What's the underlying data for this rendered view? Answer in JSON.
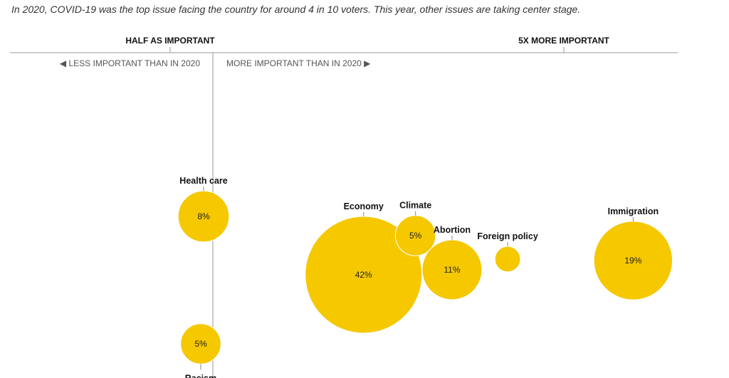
{
  "intro": "In 2020, COVID-19 was the top issue facing the country for around 4 in 10 voters. This year, other issues are taking center stage.",
  "scale": {
    "half_label": "HALF AS IMPORTANT",
    "five_x_label": "5X MORE IMPORTANT",
    "less_label": "◀ LESS IMPORTANT THAN IN 2020",
    "more_label": "MORE IMPORTANT THAN IN 2020 ▶"
  },
  "chart_data": {
    "type": "scatter",
    "title": "",
    "xlabel": "",
    "ylabel": "",
    "x_scale": "log",
    "x_tick_labels": [
      "HALF AS IMPORTANT",
      "5X MORE IMPORTANT"
    ],
    "points": [
      {
        "issue": "Health care",
        "value_label": "8%",
        "share": 8,
        "change_ratio": 0.9
      },
      {
        "issue": "Racism",
        "value_label": "5%",
        "share": 5,
        "change_ratio": 0.9
      },
      {
        "issue": "Economy",
        "value_label": "42%",
        "share": 42,
        "change_ratio": 1.55
      },
      {
        "issue": "Climate",
        "value_label": "5%",
        "share": 5,
        "change_ratio": 2.1
      },
      {
        "issue": "Abortion",
        "value_label": "11%",
        "share": 11,
        "change_ratio": 2.6
      },
      {
        "issue": "Foreign policy",
        "value_label": "",
        "share": 2,
        "change_ratio": 3.6
      },
      {
        "issue": "Immigration",
        "value_label": "19%",
        "share": 19,
        "change_ratio": 7.5
      }
    ]
  },
  "colors": {
    "bubble": "#f5c800",
    "axis": "#999999"
  }
}
